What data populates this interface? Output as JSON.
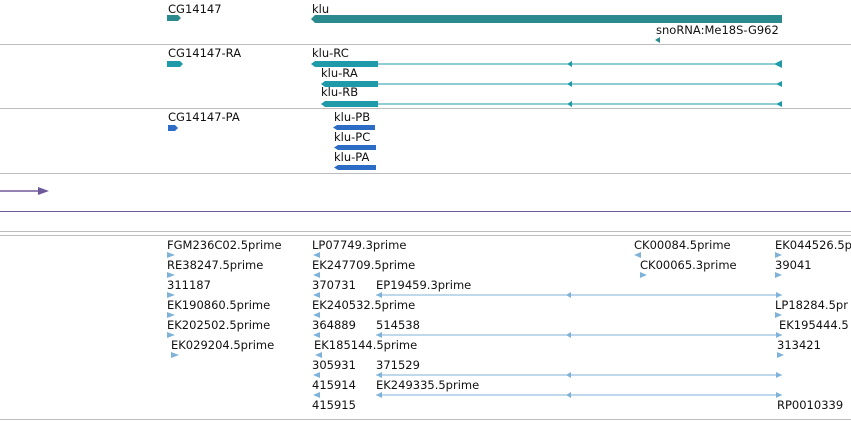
{
  "colors": {
    "gene": "#2a8a8e",
    "transcript_teal": "#1f9aa8",
    "transcript_blue": "#2c6cc4",
    "est": "#7fb2d8",
    "purple": "#6e5a9b"
  },
  "track_genes": {
    "labels": [
      "CG14147",
      "klu",
      "snoRNA:Me18S-G962"
    ]
  },
  "track_transcripts": {
    "labels": [
      "CG14147-RA",
      "klu-RC",
      "klu-RA",
      "klu-RB"
    ]
  },
  "track_proteins": {
    "labels": [
      "CG14147-PA",
      "klu-PB",
      "klu-PC",
      "klu-PA"
    ]
  },
  "track_ests": {
    "labels": [
      "FGM236C02.5prime",
      "LP07749.3prime",
      "CK00084.5prime",
      "EK044526.5p",
      "RE38247.5prime",
      "EK247709.5prime",
      "CK00065.3prime",
      "39041",
      "311187",
      "370731",
      "EP19459.3prime",
      "EK190860.5prime",
      "EK240532.5prime",
      "LP18284.5pr",
      "EK202502.5prime",
      "364889",
      "514538",
      "EK195444.5",
      "EK029204.5prime",
      "EK185144.5prime",
      "313421",
      "305931",
      "371529",
      "415914",
      "EK249335.5prime",
      "415915",
      "RP0010339"
    ]
  }
}
